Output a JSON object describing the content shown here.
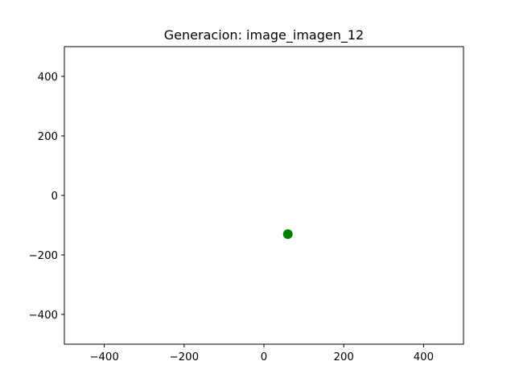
{
  "chart_data": {
    "type": "scatter",
    "title": "Generacion: image_imagen_12",
    "xlabel": "",
    "ylabel": "",
    "xlim": [
      -500,
      500
    ],
    "ylim": [
      -500,
      500
    ],
    "xticks": [
      -400,
      -200,
      0,
      200,
      400
    ],
    "yticks": [
      -400,
      -200,
      0,
      200,
      400
    ],
    "xtick_labels": [
      "−400",
      "−200",
      "0",
      "200",
      "400"
    ],
    "ytick_labels": [
      "−400",
      "−200",
      "0",
      "200",
      "400"
    ],
    "grid": false,
    "points": [
      {
        "x": 60,
        "y": -130,
        "color": "#008000"
      }
    ]
  }
}
